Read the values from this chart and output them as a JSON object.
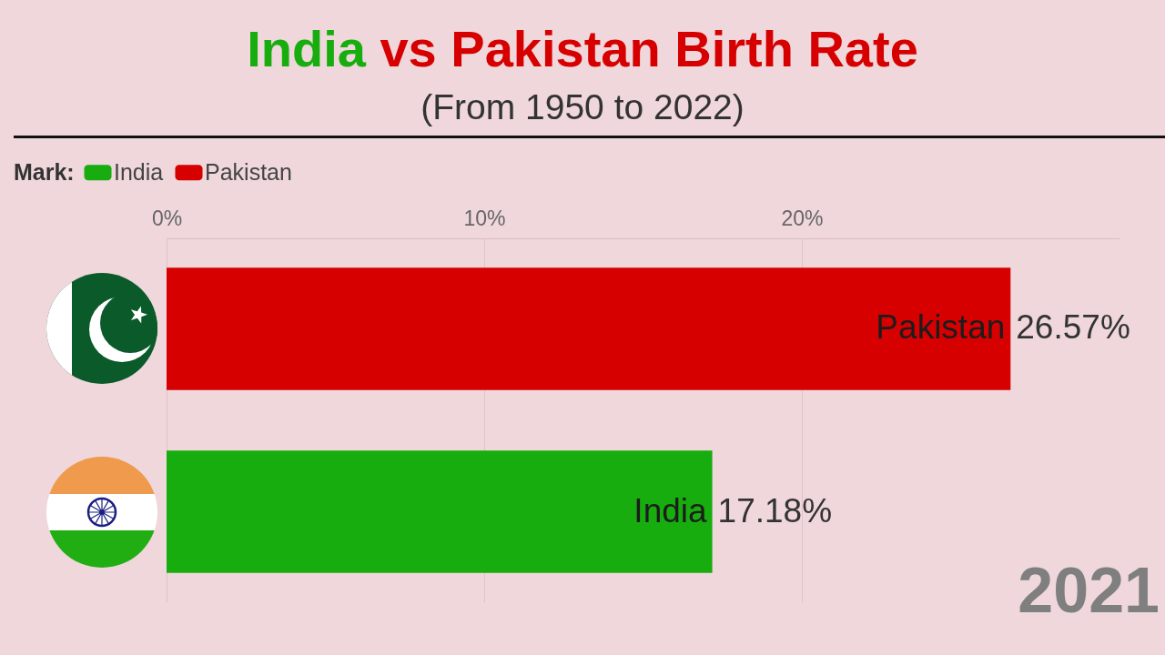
{
  "chart_data": {
    "type": "bar",
    "orientation": "horizontal",
    "title": "India vs Pakistan Birth Rate",
    "subtitle": "(From 1950 to 2022)",
    "legend_title": "Mark:",
    "categories": [
      "Pakistan",
      "India"
    ],
    "series": [
      {
        "name": "India",
        "color": "#18ad0e",
        "values": [
          null,
          17.18
        ],
        "value_labels": [
          null,
          "17.18%"
        ]
      },
      {
        "name": "Pakistan",
        "color": "#d60000",
        "values": [
          26.57,
          null
        ],
        "value_labels": [
          "26.57%",
          null
        ]
      }
    ],
    "xlim": [
      0,
      30
    ],
    "xticks": [
      {
        "value": 0,
        "label": "0%"
      },
      {
        "value": 10,
        "label": "10%"
      },
      {
        "value": 20,
        "label": "20%"
      }
    ],
    "grid": "x",
    "legend": "top left",
    "tick_labels": "x",
    "annotations": [
      "2021"
    ]
  }
}
